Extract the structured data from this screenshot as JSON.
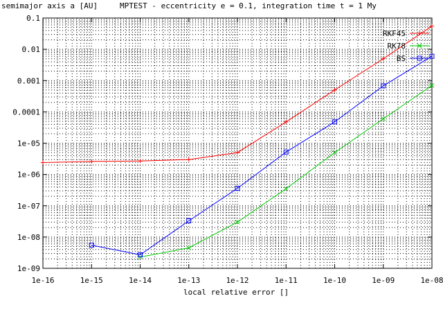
{
  "chart_data": {
    "type": "line",
    "title": "MPTEST - eccentricity e = 0.1, integration time t = 1 My",
    "ylabel": "semimajor axis a [AU]",
    "xlabel": "local relative error []",
    "x_scale": "log",
    "y_scale": "log",
    "xlim": [
      1e-16,
      1e-08
    ],
    "ylim": [
      1e-09,
      0.1
    ],
    "grid": true,
    "legend_position": "top-right",
    "x_ticks": [
      {
        "value": 1e-16,
        "label": "1e-16"
      },
      {
        "value": 1e-15,
        "label": "1e-15"
      },
      {
        "value": 1e-14,
        "label": "1e-14"
      },
      {
        "value": 1e-13,
        "label": "1e-13"
      },
      {
        "value": 1e-12,
        "label": "1e-12"
      },
      {
        "value": 1e-11,
        "label": "1e-11"
      },
      {
        "value": 1e-10,
        "label": "1e-10"
      },
      {
        "value": 1e-09,
        "label": "1e-09"
      },
      {
        "value": 1e-08,
        "label": "1e-08"
      }
    ],
    "y_ticks": [
      {
        "value": 1e-09,
        "label": "1e-09"
      },
      {
        "value": 1e-08,
        "label": "1e-08"
      },
      {
        "value": 1e-07,
        "label": "1e-07"
      },
      {
        "value": 1e-06,
        "label": "1e-06"
      },
      {
        "value": 1e-05,
        "label": "1e-05"
      },
      {
        "value": 0.0001,
        "label": "0.0001"
      },
      {
        "value": 0.001,
        "label": "0.001"
      },
      {
        "value": 0.01,
        "label": "0.01"
      },
      {
        "value": 0.1,
        "label": "0.1"
      }
    ],
    "series": [
      {
        "name": "RKF45",
        "color": "#ff0000",
        "marker": "plus",
        "x": [
          1e-16,
          1e-15,
          1e-14,
          1e-13,
          1e-12,
          1e-11,
          1e-10,
          1e-09,
          1e-08
        ],
        "y": [
          2.4e-06,
          2.6e-06,
          2.7e-06,
          3e-06,
          5e-06,
          4.8e-05,
          0.0005,
          0.005,
          0.055
        ]
      },
      {
        "name": "RK78",
        "color": "#00cc00",
        "marker": "x",
        "x": [
          1e-14,
          1e-13,
          1e-12,
          1e-11,
          1e-10,
          1e-09,
          1e-08
        ],
        "y": [
          2.3e-09,
          4.5e-09,
          3e-08,
          3.5e-07,
          5e-06,
          6e-05,
          0.0007
        ]
      },
      {
        "name": "BS",
        "color": "#0000ff",
        "marker": "square",
        "x": [
          1e-15,
          1e-14,
          1e-13,
          1e-12,
          1e-11,
          1e-10,
          1e-09,
          1e-08
        ],
        "y": [
          5.5e-09,
          2.7e-09,
          3.3e-08,
          3.6e-07,
          5.2e-06,
          4.8e-05,
          0.00068,
          0.006
        ]
      }
    ]
  }
}
